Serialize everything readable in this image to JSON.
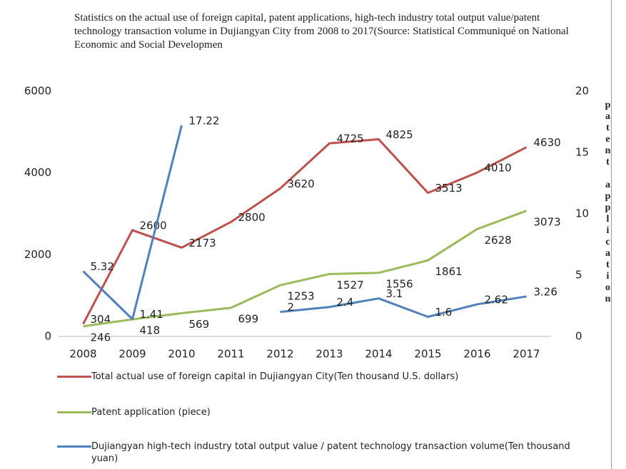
{
  "chart_data": {
    "type": "line",
    "title": "Statistics on the actual use of foreign capital, patent applications, high-tech industry total output value/patent technology transaction volume in Dujiangyan City from 2008 to 2017(Source: Statistical Communiqué on National Economic and Social Developmen",
    "y2label": "patent application",
    "categories": [
      "2008",
      "2009",
      "2010",
      "2011",
      "2012",
      "2013",
      "2014",
      "2015",
      "2016",
      "2017"
    ],
    "ylim": [
      0,
      6000
    ],
    "yticks": [
      0,
      2000,
      4000,
      6000
    ],
    "y2lim": [
      0,
      20
    ],
    "y2ticks": [
      0,
      5,
      10,
      15,
      20
    ],
    "legend": "bottom",
    "series": [
      {
        "name": "Total actual use of foreign capital in Dujiangyan City(Ten thousand U.S. dollars)",
        "color": "#c0504d",
        "values": [
          304,
          2600,
          2173,
          2800,
          3620,
          4725,
          4825,
          3513,
          4010,
          4630
        ]
      },
      {
        "name": "Patent application (piece)",
        "color": "#9bbb59",
        "values": [
          246,
          418,
          569,
          699,
          1253,
          1527,
          1556,
          1861,
          2628,
          3073
        ]
      },
      {
        "name": "Dujiangyan high-tech industry total output value / patent technology transaction volume(Ten thousand yuan)",
        "color": "#4f81bd",
        "axis": "y2",
        "values": [
          5.32,
          1.41,
          17.22,
          null,
          2,
          2.4,
          3.1,
          1.6,
          2.62,
          3.26
        ]
      }
    ]
  }
}
